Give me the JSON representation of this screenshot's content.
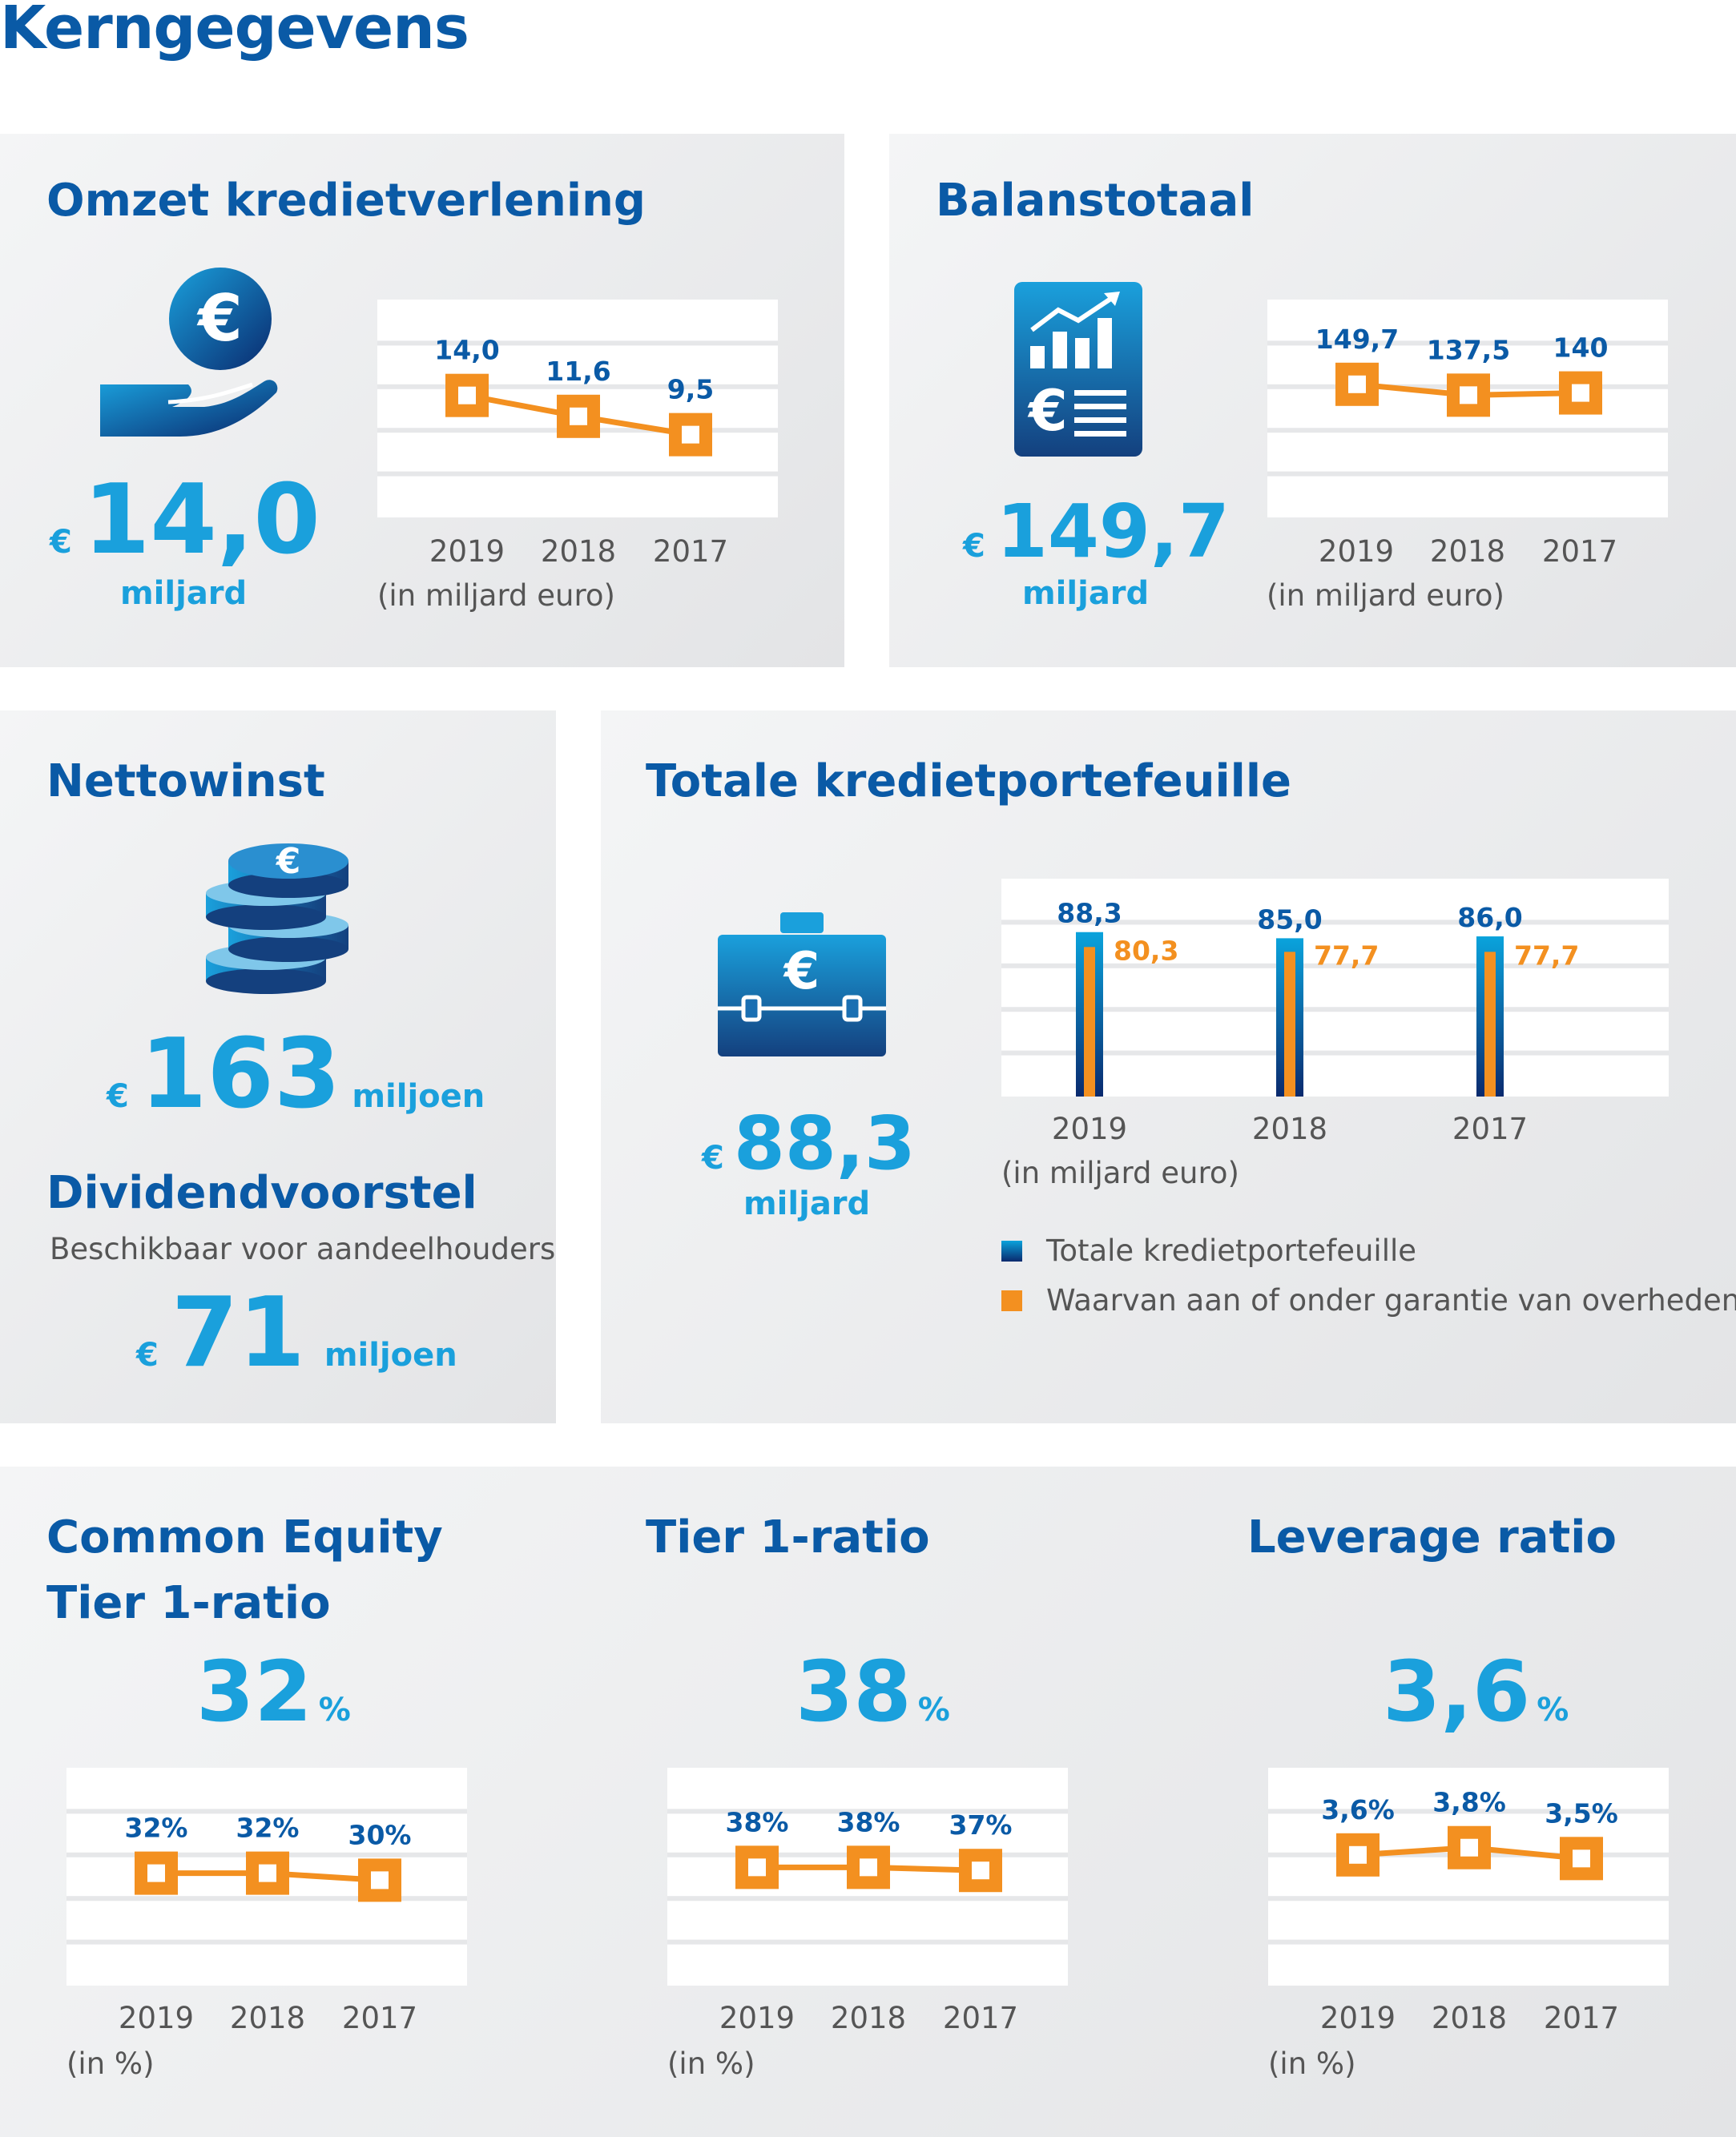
{
  "page_title": "Kerngegevens",
  "omzet": {
    "title": "Omzet kredietverlening",
    "currency": "€",
    "value": "14,0",
    "unit": "miljard",
    "note": "(in miljard euro)",
    "icon": "hand-euro-coin-icon"
  },
  "balans": {
    "title": "Balanstotaal",
    "currency": "€",
    "value": "149,7",
    "unit": "miljard",
    "note": "(in miljard euro)",
    "icon": "financial-report-icon"
  },
  "nettowinst": {
    "title": "Nettowinst",
    "currency": "€",
    "value": "163",
    "unit": "miljoen",
    "icon": "coin-stack-icon"
  },
  "dividend": {
    "title": "Dividendvoorstel",
    "subtitle": "Beschikbaar voor aandeelhouders",
    "currency": "€",
    "value": "71",
    "unit": "miljoen"
  },
  "portefeuille": {
    "title": "Totale kredietportefeuille",
    "currency": "€",
    "value": "88,3",
    "unit": "miljard",
    "note": "(in miljard euro)",
    "icon": "briefcase-euro-icon"
  },
  "cet1": {
    "title_line1": "Common Equity",
    "title_line2": "Tier 1-ratio",
    "value": "32",
    "unit": "%",
    "note": "(in %)"
  },
  "tier1": {
    "title": "Tier 1-ratio",
    "value": "38",
    "unit": "%",
    "note": "(in %)"
  },
  "leverage": {
    "title": "Leverage ratio",
    "value": "3,6",
    "unit": "%",
    "note": "(in %)"
  },
  "colors": {
    "title_blue": "#0a5aa6",
    "value_cyan": "#1aa0dc",
    "orange": "#f39020",
    "bar_top": "#0aa3dc",
    "bar_bottom": "#0a2a6e"
  },
  "chart_data": [
    {
      "id": "omzet",
      "type": "line",
      "categories": [
        "2019",
        "2018",
        "2017"
      ],
      "values": [
        14.0,
        11.6,
        9.5
      ],
      "labels": [
        "14,0",
        "11,6",
        "9,5"
      ],
      "ylim": [
        0,
        25
      ],
      "grid": true
    },
    {
      "id": "balans",
      "type": "line",
      "categories": [
        "2019",
        "2018",
        "2017"
      ],
      "values": [
        149.7,
        137.5,
        140
      ],
      "labels": [
        "149,7",
        "137,5",
        "140"
      ],
      "ylim": [
        0,
        245
      ],
      "grid": true
    },
    {
      "id": "portefeuille",
      "type": "bar",
      "categories": [
        "2019",
        "2018",
        "2017"
      ],
      "series": [
        {
          "name": "Totale kredietportefeuille",
          "values": [
            88.3,
            85.0,
            86.0
          ],
          "labels": [
            "88,3",
            "85,0",
            "86,0"
          ]
        },
        {
          "name": "Waarvan aan of onder garantie van overheden",
          "values": [
            80.3,
            77.7,
            77.7
          ],
          "labels": [
            "80,3",
            "77,7",
            "77,7"
          ]
        }
      ],
      "ylim": [
        0,
        117
      ],
      "grid": true,
      "legend": "bottom"
    },
    {
      "id": "cet1",
      "type": "line",
      "categories": [
        "2019",
        "2018",
        "2017"
      ],
      "values": [
        32,
        32,
        30
      ],
      "labels": [
        "32%",
        "32%",
        "30%"
      ],
      "ylim": [
        0,
        62
      ],
      "grid": true
    },
    {
      "id": "tier1",
      "type": "line",
      "categories": [
        "2019",
        "2018",
        "2017"
      ],
      "values": [
        38,
        38,
        37
      ],
      "labels": [
        "38%",
        "38%",
        "37%"
      ],
      "ylim": [
        0,
        70
      ],
      "grid": true
    },
    {
      "id": "leverage",
      "type": "line",
      "categories": [
        "2019",
        "2018",
        "2017"
      ],
      "values": [
        3.6,
        3.8,
        3.5
      ],
      "labels": [
        "3,6%",
        "3,8%",
        "3,5%"
      ],
      "ylim": [
        0,
        6
      ],
      "grid": true
    }
  ]
}
